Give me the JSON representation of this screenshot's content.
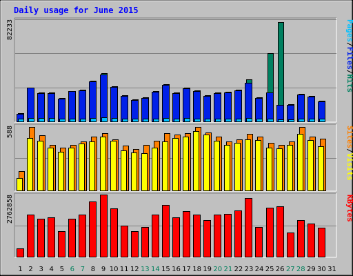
{
  "title": "Daily usage for June 2015",
  "chart_data": {
    "type": "bar",
    "categories": [
      "1",
      "2",
      "3",
      "4",
      "5",
      "6",
      "7",
      "8",
      "9",
      "10",
      "11",
      "12",
      "13",
      "14",
      "15",
      "16",
      "17",
      "18",
      "19",
      "20",
      "21",
      "22",
      "23",
      "24",
      "25",
      "26",
      "27",
      "28",
      "29",
      "30",
      "31"
    ],
    "weekend_days": [
      "6",
      "7",
      "13",
      "14",
      "20",
      "21",
      "27",
      "28"
    ],
    "panels": [
      {
        "name": "hits_files_pages",
        "max_label": "82233",
        "ylim": [
          0,
          82233
        ],
        "legend": [
          "Pages",
          "/",
          "Files",
          "/",
          "Hits"
        ],
        "legend_colors": [
          "#00c0ff",
          "#000000",
          "#0020e8",
          "#000000",
          "#008060"
        ],
        "series": [
          {
            "name": "Hits",
            "color": "#008060",
            "values": [
              6800,
              27500,
              23500,
              23200,
              18900,
              24700,
              25700,
              33000,
              38700,
              28300,
              21300,
              17800,
              19600,
              24700,
              29900,
              23500,
              27500,
              25200,
              21300,
              23200,
              23800,
              25800,
              33900,
              19700,
              55000,
              80000,
              13800,
              22100,
              20700,
              16800,
              0
            ]
          },
          {
            "name": "Files",
            "color": "#0020e8",
            "values": [
              6100,
              27000,
              23000,
              22800,
              18300,
              24200,
              25100,
              32300,
              38000,
              27700,
              20700,
              17200,
              19100,
              24100,
              29300,
              23000,
              26900,
              24600,
              20700,
              22700,
              23200,
              25200,
              30900,
              19100,
              23300,
              13300,
              13200,
              21500,
              20100,
              16200,
              0
            ]
          },
          {
            "name": "Pages",
            "color": "#00c0ff",
            "values": [
              2000,
              2700,
              2600,
              2600,
              2200,
              2500,
              2500,
              2800,
              3100,
              2700,
              2300,
              2100,
              2200,
              2500,
              2700,
              2500,
              2600,
              2500,
              2200,
              2400,
              2400,
              2500,
              2800,
              2100,
              2400,
              1800,
              1600,
              2400,
              2300,
              2000,
              0
            ]
          }
        ]
      },
      {
        "name": "sites_visits",
        "max_label": "588",
        "ylim": [
          0,
          588
        ],
        "legend": [
          "Sites",
          "/",
          "Visits"
        ],
        "legend_colors": [
          "#ff8000",
          "#000000",
          "#ffff00"
        ],
        "series": [
          {
            "name": "Sites",
            "color": "#ff8000",
            "values": [
              175,
              575,
              500,
              410,
              390,
              410,
              445,
              485,
              520,
              465,
              405,
              375,
              410,
              450,
              520,
              505,
              520,
              575,
              525,
              485,
              445,
              465,
              510,
              485,
              430,
              410,
              445,
              578,
              485,
              470,
              0
            ]
          },
          {
            "name": "Visits",
            "color": "#ffff00",
            "values": [
              115,
              475,
              450,
              390,
              350,
              390,
              425,
              445,
              485,
              450,
              360,
              345,
              340,
              385,
              445,
              475,
              490,
              540,
              505,
              450,
              415,
              430,
              460,
              455,
              390,
              380,
              410,
              510,
              455,
              400,
              0
            ]
          }
        ]
      },
      {
        "name": "kbytes",
        "max_label": "2762858",
        "ylim": [
          0,
          2762858
        ],
        "legend": [
          "KBytes"
        ],
        "legend_colors": [
          "#ff0000"
        ],
        "series": [
          {
            "name": "KBytes",
            "color": "#ff0000",
            "values": [
              380000,
              1880000,
              1700000,
              1740000,
              1140000,
              1700000,
              1880000,
              2470000,
              2760000,
              2160000,
              1380000,
              1140000,
              1310000,
              1880000,
              2290000,
              1760000,
              2040000,
              1880000,
              1630000,
              1860000,
              1910000,
              2060000,
              2620000,
              1330000,
              2180000,
              2240000,
              1070000,
              1640000,
              1460000,
              1290000,
              0
            ]
          }
        ]
      }
    ]
  }
}
